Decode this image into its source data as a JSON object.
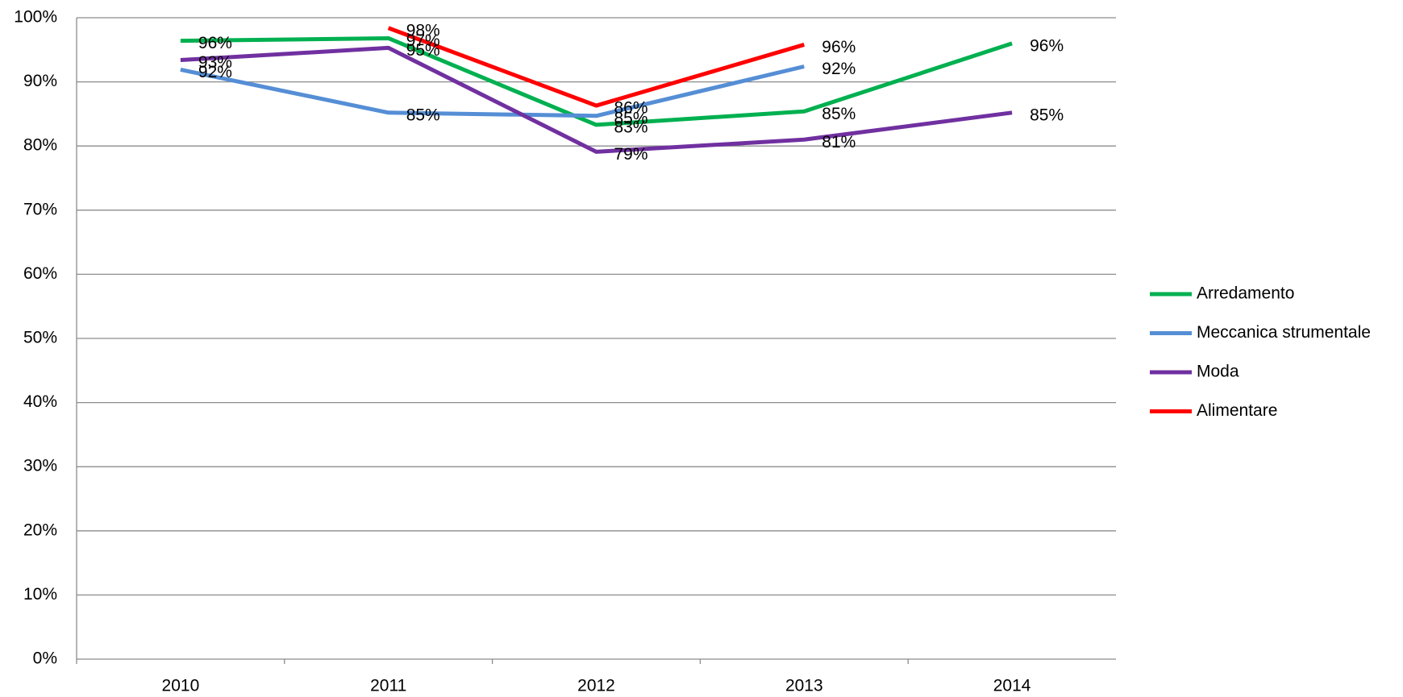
{
  "chart_data": {
    "type": "line",
    "categories": [
      "2010",
      "2011",
      "2012",
      "2013",
      "2014"
    ],
    "series": [
      {
        "name": "Arredamento",
        "color": "#00b050",
        "values": [
          96.4,
          96.8,
          83.3,
          85.4,
          96.0
        ],
        "value_labels": [
          "96%",
          "97%",
          "83%",
          "85%",
          "96%"
        ]
      },
      {
        "name": "Meccanica strumentale",
        "color": "#558ed5",
        "values": [
          91.9,
          85.2,
          84.7,
          92.4,
          null
        ],
        "value_labels": [
          "92%",
          "85%",
          "85%",
          "92%",
          null
        ]
      },
      {
        "name": "Moda",
        "color": "#7030a0",
        "values": [
          93.4,
          95.3,
          79.1,
          81.0,
          85.2
        ],
        "value_labels": [
          "93%",
          "95%",
          "79%",
          "81%",
          "85%"
        ]
      },
      {
        "name": "Alimentare",
        "color": "#ff0000",
        "values": [
          null,
          98.4,
          86.3,
          95.8,
          null
        ],
        "value_labels": [
          null,
          "98%",
          "86%",
          "96%",
          null
        ]
      }
    ],
    "ylim": [
      0,
      100
    ],
    "yticks": [
      {
        "value": 0,
        "label": "0%"
      },
      {
        "value": 10,
        "label": "10%"
      },
      {
        "value": 20,
        "label": "20%"
      },
      {
        "value": 30,
        "label": "30%"
      },
      {
        "value": 40,
        "label": "40%"
      },
      {
        "value": 50,
        "label": "50%"
      },
      {
        "value": 60,
        "label": "60%"
      },
      {
        "value": 70,
        "label": "70%"
      },
      {
        "value": 80,
        "label": "80%"
      },
      {
        "value": 90,
        "label": "90%"
      },
      {
        "value": 100,
        "label": "100%"
      }
    ],
    "grid": true,
    "legend": "right"
  }
}
